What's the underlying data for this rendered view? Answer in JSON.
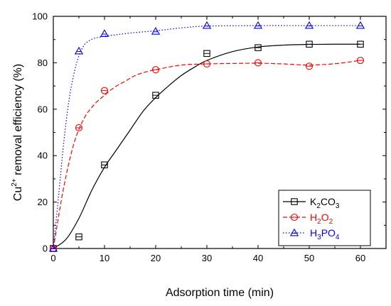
{
  "chart_data": {
    "type": "scatter",
    "xlabel": "Adsorption time (min)",
    "ylabel_prefix": "Cu",
    "ylabel_sup": "2+",
    "ylabel_suffix": " removal efficiency (%)",
    "xlim": [
      0,
      65
    ],
    "ylim": [
      0,
      100
    ],
    "xticks": [
      0,
      10,
      20,
      30,
      40,
      50,
      60
    ],
    "yticks": [
      0,
      20,
      40,
      60,
      80,
      100
    ],
    "grid": false,
    "legend_position": "bottom-right",
    "series": [
      {
        "name": "K2CO3",
        "legend_parts": [
          {
            "text": "K",
            "sub": false
          },
          {
            "text": "2",
            "sub": true
          },
          {
            "text": "CO",
            "sub": false
          },
          {
            "text": "3",
            "sub": true
          }
        ],
        "color": "#000000",
        "marker": "square",
        "line_style": "solid",
        "x": [
          0,
          5,
          10,
          20,
          30,
          40,
          50,
          60
        ],
        "y": [
          0,
          5,
          36,
          66,
          84,
          86.5,
          88,
          88
        ],
        "fit_x": [
          0,
          2.5,
          5,
          7.5,
          10,
          12.5,
          15,
          17.5,
          20,
          22.5,
          25,
          27.5,
          30,
          35,
          40,
          45,
          50,
          55,
          60
        ],
        "fit_y": [
          0,
          4,
          13,
          25,
          35,
          43,
          51,
          59,
          65,
          70,
          74.5,
          78,
          81,
          84.8,
          86.8,
          87.6,
          87.9,
          88,
          88
        ]
      },
      {
        "name": "H2O2",
        "legend_parts": [
          {
            "text": "H",
            "sub": false
          },
          {
            "text": "2",
            "sub": true
          },
          {
            "text": "O",
            "sub": false
          },
          {
            "text": "2",
            "sub": true
          }
        ],
        "color": "#ff0000",
        "marker": "circle",
        "line_style": "dashed",
        "x": [
          0,
          5,
          10,
          20,
          30,
          40,
          50,
          60
        ],
        "y": [
          0,
          52,
          68,
          77,
          79.5,
          80,
          78.5,
          81
        ],
        "fit_x": [
          0,
          2,
          4,
          6,
          8,
          10,
          12,
          14,
          16,
          18,
          20,
          25,
          30,
          35,
          40,
          45,
          50,
          55,
          60
        ],
        "fit_y": [
          0,
          26,
          45,
          56,
          62,
          66,
          69.5,
          72,
          74.5,
          76,
          77,
          79,
          79.5,
          79.7,
          79.8,
          79.5,
          79,
          79.6,
          81
        ]
      },
      {
        "name": "H3PO4",
        "legend_parts": [
          {
            "text": "H",
            "sub": false
          },
          {
            "text": "3",
            "sub": true
          },
          {
            "text": "PO",
            "sub": false
          },
          {
            "text": "4",
            "sub": true
          }
        ],
        "color": "#0000ff",
        "marker": "triangle",
        "line_style": "dotted",
        "x": [
          0,
          5,
          10,
          20,
          30,
          40,
          50,
          60
        ],
        "y": [
          0,
          85,
          92.5,
          93.5,
          96,
          96,
          96,
          96
        ],
        "fit_x": [
          0,
          1,
          2,
          3,
          4,
          5,
          6,
          7,
          8,
          9,
          10,
          12,
          15,
          20,
          25,
          30,
          40,
          50,
          60
        ],
        "fit_y": [
          0,
          22,
          45,
          63,
          75,
          83,
          87.5,
          89.5,
          90.5,
          91,
          91.5,
          92,
          92.8,
          93.8,
          95,
          95.8,
          96,
          96,
          96
        ]
      }
    ]
  }
}
